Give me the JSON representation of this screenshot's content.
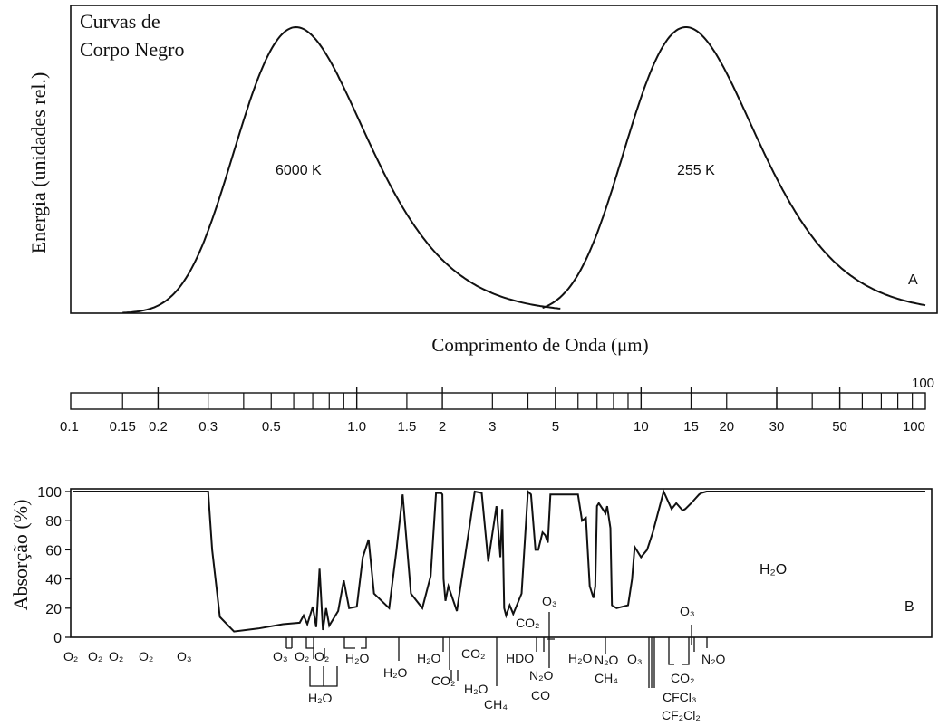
{
  "colors": {
    "ink": "#111111",
    "background": "#ffffff"
  },
  "chart_data": [
    {
      "type": "line",
      "title": "Curvas de Corpo Negro",
      "title_lines": [
        "Curvas de",
        "Corpo Negro"
      ],
      "ylabel": "Energia (unidades rel.)",
      "xlabel": "Comprimento de Onda (μm)",
      "panel_label": "A",
      "x_scale": "log",
      "xlim": [
        0.1,
        100
      ],
      "y_axis_ticks": "none",
      "series": [
        {
          "name": "6000 K",
          "peak_x": 0.5,
          "peak_y": 1.0,
          "range": [
            0.15,
            5.2
          ]
        },
        {
          "name": "255 K",
          "peak_x": 11.4,
          "peak_y": 1.0,
          "range": [
            4.5,
            100
          ]
        }
      ]
    },
    {
      "type": "axis",
      "x_scale": "log",
      "xlim": [
        0.1,
        100
      ],
      "tick_labels": [
        "0.1",
        "0.15",
        "0.2",
        "0.3",
        "0.5",
        "1.0",
        "1.5",
        "2",
        "3",
        "5",
        "10",
        "15",
        "20",
        "30",
        "50",
        "100"
      ],
      "tick_label_values": [
        0.1,
        0.15,
        0.2,
        0.3,
        0.5,
        1.0,
        1.5,
        2,
        3,
        5,
        10,
        15,
        20,
        30,
        50,
        100
      ],
      "extra_label": "100"
    },
    {
      "type": "line",
      "ylabel": "Absorção (%)",
      "panel_label": "B",
      "x_scale": "log",
      "xlim": [
        0.1,
        100
      ],
      "ylim": [
        0,
        100
      ],
      "yticks": [
        "0",
        "20",
        "40",
        "60",
        "80",
        "100"
      ],
      "annotation": "H₂O",
      "series": [
        {
          "name": "absorption",
          "x": [
            0.1,
            0.3,
            0.31,
            0.33,
            0.37,
            0.45,
            0.55,
            0.63,
            0.65,
            0.67,
            0.7,
            0.72,
            0.74,
            0.76,
            0.78,
            0.8,
            0.86,
            0.9,
            0.94,
            1.0,
            1.05,
            1.1,
            1.15,
            1.3,
            1.38,
            1.45,
            1.55,
            1.7,
            1.82,
            1.9,
            1.98,
            2.0,
            2.02,
            2.05,
            2.1,
            2.25,
            2.6,
            2.75,
            2.9,
            3.1,
            3.2,
            3.25,
            3.3,
            3.35,
            3.45,
            3.55,
            3.8,
            4.0,
            4.1,
            4.25,
            4.35,
            4.5,
            4.6,
            4.7,
            4.8,
            5.0,
            5.5,
            6.0,
            6.2,
            6.4,
            6.6,
            6.8,
            6.9,
            7.0,
            7.1,
            7.5,
            7.6,
            7.8,
            7.9,
            8.2,
            9.0,
            9.3,
            9.5,
            10.0,
            10.5,
            11.0,
            12.0,
            12.8,
            13.3,
            14.0,
            14.3,
            15.0,
            15.5,
            16.0,
            16.3,
            17.0,
            17.5,
            19.0,
            22.0,
            25.0,
            100
          ],
          "y": [
            100,
            100,
            60,
            14,
            4,
            6,
            9,
            10,
            15,
            9,
            21,
            7,
            47,
            5,
            20,
            8,
            18,
            39,
            20,
            21,
            55,
            67,
            30,
            20,
            60,
            98,
            30,
            20,
            42,
            99,
            99,
            98,
            40,
            25,
            35,
            18,
            100,
            99,
            52,
            90,
            55,
            88,
            20,
            15,
            22,
            16,
            30,
            100,
            98,
            60,
            60,
            72,
            70,
            65,
            98,
            98,
            98,
            98,
            80,
            82,
            35,
            27,
            35,
            90,
            92,
            85,
            90,
            75,
            22,
            20,
            22,
            40,
            62,
            55,
            60,
            72,
            100,
            88,
            92,
            87,
            88,
            92,
            95,
            98,
            99,
            100,
            100,
            100,
            100,
            100,
            100
          ]
        }
      ],
      "molecule_labels": [
        "O₂",
        "O₂",
        "O₂",
        "O₂",
        "O₃",
        "O₃",
        "O₂",
        "O₂",
        "H₂O",
        "H₂O",
        "H₂O",
        "H₂O",
        "CO₂",
        "CO₂",
        "H₂O",
        "CH₄",
        "HDO",
        "CO₂",
        "O₃",
        "N₂O",
        "CO",
        "H₂O",
        "N₂O",
        "CH₄",
        "O₃",
        "CFCl₃",
        "CF₂Cl₂",
        "CO₂",
        "O₃",
        "N₂O"
      ]
    }
  ]
}
